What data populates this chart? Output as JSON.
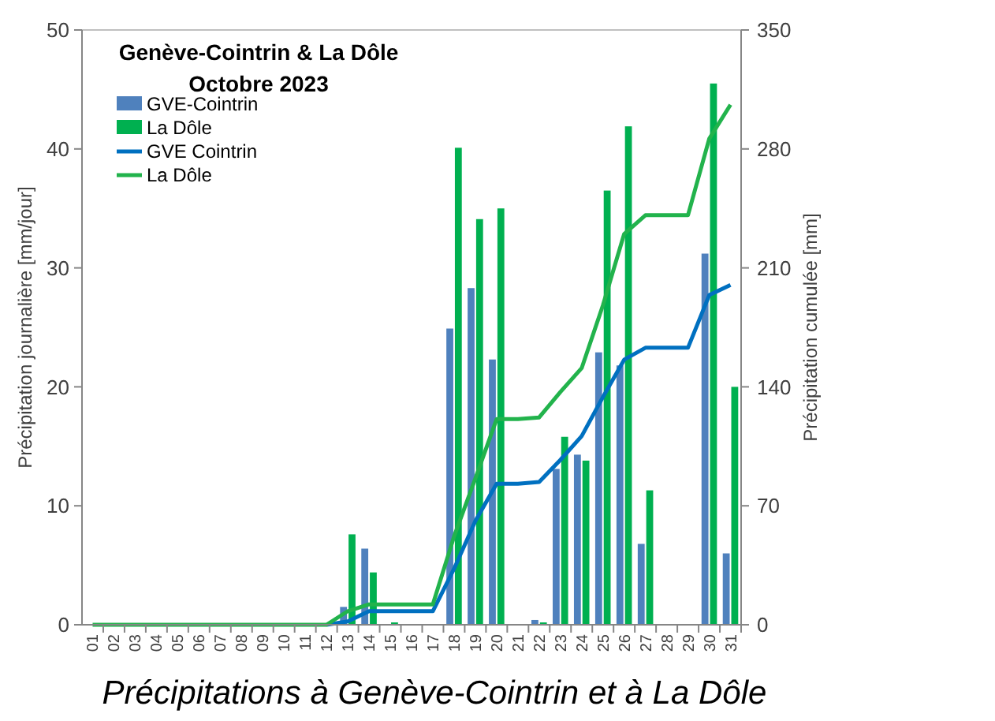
{
  "chart_data": {
    "type": "bar",
    "title": "Genève-Cointrin & La Dôle",
    "subtitle": "Octobre 2023",
    "ylabel": "Précipitation journalière [mm/jour]",
    "y2label": "Précipitation cumulée [mm]",
    "annotations": [
      "Précipitations à Genève-Cointrin et à La Dôle"
    ],
    "categories": [
      "01",
      "02",
      "03",
      "04",
      "05",
      "06",
      "07",
      "08",
      "09",
      "10",
      "11",
      "12",
      "13",
      "14",
      "15",
      "16",
      "17",
      "18",
      "19",
      "20",
      "21",
      "22",
      "23",
      "24",
      "25",
      "26",
      "27",
      "28",
      "29",
      "30",
      "31"
    ],
    "series": [
      {
        "name": "GVE-Cointrin",
        "color": "#4f81bd",
        "values": [
          0,
          0,
          0,
          0,
          0,
          0,
          0,
          0,
          0,
          0,
          0,
          0,
          1.5,
          6.4,
          0,
          0,
          0,
          24.9,
          28.3,
          22.3,
          0,
          0.4,
          13.1,
          14.3,
          22.9,
          21.8,
          6.8,
          0,
          0,
          31.2,
          6.0
        ]
      },
      {
        "name": "La Dôle",
        "color": "#00b050",
        "values": [
          0,
          0,
          0,
          0,
          0,
          0,
          0,
          0,
          0,
          0,
          0,
          0,
          7.6,
          4.4,
          0.2,
          0,
          0,
          40.1,
          34.1,
          35,
          0,
          0.2,
          15.8,
          13.8,
          36.5,
          41.9,
          11.3,
          0,
          0,
          45.5,
          20
        ]
      },
      {
        "name": "GVE Cointrin",
        "type": "line",
        "axis": "y2",
        "color": "#0070c0",
        "values": [
          null,
          null,
          null,
          null,
          null,
          null,
          null,
          null,
          null,
          null,
          null,
          0,
          2,
          8,
          8,
          8,
          8,
          33,
          61,
          83,
          83,
          84,
          97,
          111,
          134,
          156,
          163,
          163,
          163,
          194,
          200
        ]
      },
      {
        "name": "La Dôle",
        "type": "line",
        "axis": "y2",
        "color": "#22b34c",
        "values": [
          0,
          0,
          0,
          0,
          0,
          0,
          0,
          0,
          0,
          0,
          0,
          0,
          8,
          12,
          12,
          12,
          12,
          52,
          86,
          121,
          121,
          122,
          137,
          151,
          188,
          230,
          241,
          241,
          241,
          286,
          306
        ]
      }
    ],
    "ylim": [
      0,
      50
    ],
    "yticks": [
      0,
      10,
      20,
      30,
      40,
      50
    ],
    "y2lim": [
      0,
      350
    ],
    "y2ticks": [
      0,
      70,
      140,
      210,
      280,
      350
    ],
    "grid": false,
    "legend": "top left"
  }
}
